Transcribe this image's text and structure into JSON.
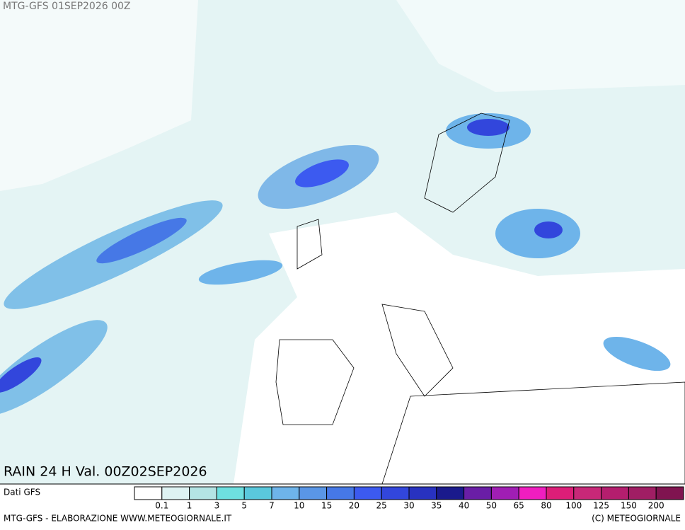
{
  "header": {
    "title": "MTG-GFS 01SEP2026 00Z"
  },
  "map": {
    "caption": "RAIN 24 H Val. 00Z02SEP2026"
  },
  "legend": {
    "source": "Dati GFS",
    "colors": [
      "#ffffff",
      "#def3f3",
      "#b4e4e4",
      "#6ee0e0",
      "#5ac8dc",
      "#6eb4ea",
      "#5a96e6",
      "#4678e6",
      "#3c5af0",
      "#3246dc",
      "#2832c0",
      "#1a1a8c",
      "#6a1ea6",
      "#a01eb4",
      "#f01ec0",
      "#dc1e78",
      "#c82878",
      "#b41e6e",
      "#a01e64",
      "#801450"
    ],
    "labels": [
      0.1,
      1,
      3,
      5,
      7,
      10,
      15,
      20,
      25,
      30,
      35,
      40,
      50,
      65,
      80,
      100,
      125,
      150,
      200
    ]
  },
  "footer": {
    "left": "MTG-GFS - ELABORAZIONE WWW.METEOGIORNALE.IT",
    "right": "(C) METEOGIORNALE"
  }
}
